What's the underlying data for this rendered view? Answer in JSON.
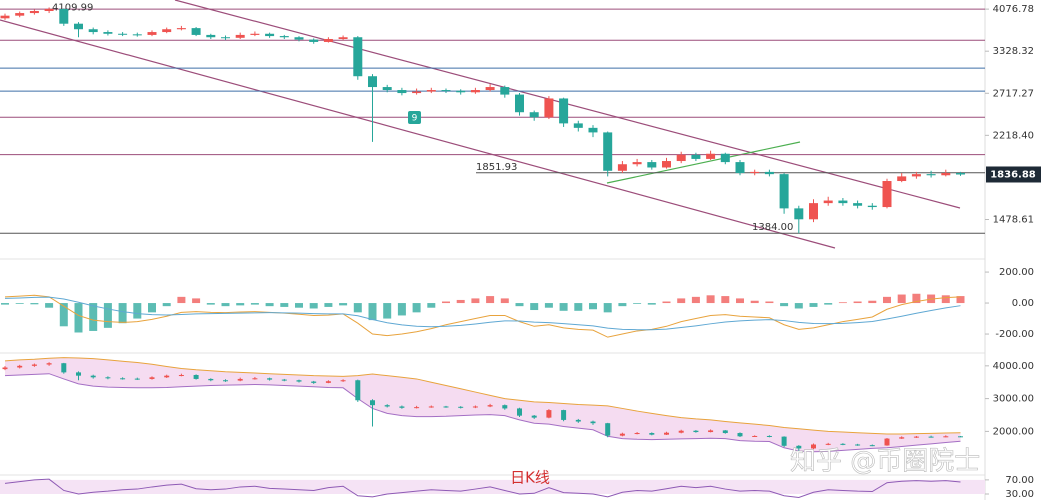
{
  "chart_data": [
    {
      "type": "candlestick",
      "log": true,
      "ylim": [
        1240,
        4260
      ],
      "yticks": [
        4076.78,
        3328.32,
        2717.27,
        {
          "value": 2218.4,
          "label": "2218.40"
        },
        1478.61
      ],
      "up_color": "#ef5350",
      "down_color": "#26a69a",
      "ohlc": [
        [
          3900,
          3990,
          3870,
          3950
        ],
        [
          3950,
          4030,
          3920,
          4000
        ],
        [
          4000,
          4070,
          3970,
          4040
        ],
        [
          4040,
          4110,
          4000,
          4080
        ],
        [
          4080,
          4090,
          3760,
          3800
        ],
        [
          3800,
          3830,
          3560,
          3700
        ],
        [
          3700,
          3730,
          3610,
          3650
        ],
        [
          3650,
          3680,
          3590,
          3620
        ],
        [
          3620,
          3650,
          3580,
          3610
        ],
        [
          3610,
          3640,
          3570,
          3600
        ],
        [
          3600,
          3680,
          3580,
          3650
        ],
        [
          3650,
          3730,
          3630,
          3700
        ],
        [
          3700,
          3760,
          3680,
          3720
        ],
        [
          3720,
          3740,
          3580,
          3600
        ],
        [
          3600,
          3620,
          3530,
          3560
        ],
        [
          3560,
          3590,
          3510,
          3550
        ],
        [
          3550,
          3640,
          3530,
          3600
        ],
        [
          3600,
          3660,
          3580,
          3620
        ],
        [
          3620,
          3640,
          3550,
          3580
        ],
        [
          3580,
          3600,
          3530,
          3560
        ],
        [
          3560,
          3580,
          3490,
          3520
        ],
        [
          3520,
          3540,
          3450,
          3480
        ],
        [
          3480,
          3560,
          3470,
          3530
        ],
        [
          3530,
          3590,
          3510,
          3560
        ],
        [
          3560,
          3580,
          2900,
          2950
        ],
        [
          2950,
          2980,
          2150,
          2800
        ],
        [
          2800,
          2830,
          2730,
          2760
        ],
        [
          2760,
          2790,
          2690,
          2720
        ],
        [
          2720,
          2780,
          2700,
          2740
        ],
        [
          2740,
          2790,
          2720,
          2760
        ],
        [
          2760,
          2780,
          2720,
          2750
        ],
        [
          2750,
          2770,
          2700,
          2730
        ],
        [
          2730,
          2790,
          2710,
          2760
        ],
        [
          2760,
          2840,
          2740,
          2800
        ],
        [
          2800,
          2820,
          2660,
          2700
        ],
        [
          2700,
          2720,
          2440,
          2480
        ],
        [
          2480,
          2500,
          2380,
          2420
        ],
        [
          2420,
          2680,
          2400,
          2650
        ],
        [
          2650,
          2660,
          2310,
          2350
        ],
        [
          2350,
          2380,
          2260,
          2300
        ],
        [
          2300,
          2330,
          2200,
          2250
        ],
        [
          2250,
          2260,
          1820,
          1870
        ],
        [
          1870,
          1960,
          1850,
          1930
        ],
        [
          1930,
          1980,
          1910,
          1950
        ],
        [
          1950,
          1970,
          1880,
          1900
        ],
        [
          1900,
          1990,
          1890,
          1960
        ],
        [
          1960,
          2050,
          1940,
          2020
        ],
        [
          2020,
          2040,
          1960,
          1980
        ],
        [
          1980,
          2060,
          1970,
          2030
        ],
        [
          2030,
          2040,
          1930,
          1950
        ],
        [
          1950,
          1970,
          1830,
          1850
        ],
        [
          1850,
          1880,
          1830,
          1860
        ],
        [
          1860,
          1880,
          1820,
          1840
        ],
        [
          1840,
          1850,
          1520,
          1560
        ],
        [
          1560,
          1580,
          1384,
          1480
        ],
        [
          1480,
          1630,
          1460,
          1600
        ],
        [
          1600,
          1650,
          1580,
          1620
        ],
        [
          1620,
          1640,
          1580,
          1600
        ],
        [
          1600,
          1620,
          1560,
          1580
        ],
        [
          1580,
          1600,
          1550,
          1570
        ],
        [
          1570,
          1800,
          1560,
          1780
        ],
        [
          1780,
          1850,
          1770,
          1820
        ],
        [
          1820,
          1860,
          1800,
          1840
        ],
        [
          1840,
          1870,
          1810,
          1830
        ],
        [
          1830,
          1880,
          1820,
          1850
        ],
        [
          1850,
          1860,
          1825,
          1836.88
        ]
      ],
      "levels": [
        4076,
        3509,
        3068,
        2745,
        2420,
        2022
      ],
      "level_colors": [
        "#9c4d7a",
        "#9c4d7a",
        "#3f6fa8",
        "#3f6fa8",
        "#9c4d7a",
        "#9c4d7a"
      ],
      "price_labels": [
        {
          "value": 4109.99,
          "label": "4109.99"
        },
        {
          "value": 1851.93,
          "label": "1851.93"
        },
        {
          "value": 1384,
          "label": "1384.00"
        }
      ],
      "last": {
        "value": 1836.88,
        "label": "1836.88"
      }
    },
    {
      "type": "macd",
      "ylim": [
        -303,
        265
      ],
      "yticks": [
        {
          "value": 200,
          "label": "200.00"
        },
        {
          "value": 0,
          "label": "0.00"
        },
        {
          "value": -200,
          "label": "-200.00"
        }
      ],
      "up_color": "#ef5350",
      "down_color": "#26a69a",
      "histogram": [
        -10,
        -5,
        -8,
        -30,
        -150,
        -190,
        -180,
        -160,
        -130,
        -100,
        -60,
        -20,
        40,
        30,
        -10,
        -20,
        -15,
        -10,
        -20,
        -25,
        -30,
        -35,
        -25,
        -15,
        -60,
        -110,
        -100,
        -80,
        -60,
        -30,
        10,
        20,
        30,
        45,
        30,
        -20,
        -45,
        -30,
        -50,
        -50,
        -40,
        -60,
        -20,
        -5,
        -10,
        10,
        30,
        40,
        50,
        45,
        30,
        15,
        10,
        -20,
        -35,
        -25,
        -10,
        5,
        10,
        15,
        40,
        55,
        60,
        55,
        50,
        45
      ],
      "series": [
        {
          "color": "#e8a33d",
          "values": [
            40,
            45,
            50,
            40,
            -20,
            -80,
            -110,
            -120,
            -125,
            -120,
            -105,
            -85,
            -60,
            -55,
            -60,
            -62,
            -58,
            -55,
            -60,
            -65,
            -72,
            -80,
            -78,
            -70,
            -130,
            -200,
            -210,
            -200,
            -185,
            -165,
            -140,
            -120,
            -100,
            -80,
            -80,
            -120,
            -150,
            -140,
            -160,
            -170,
            -175,
            -220,
            -200,
            -180,
            -170,
            -150,
            -120,
            -100,
            -80,
            -75,
            -85,
            -90,
            -95,
            -140,
            -170,
            -160,
            -140,
            -120,
            -105,
            -90,
            -40,
            -10,
            10,
            25,
            35,
            40
          ]
        },
        {
          "color": "#5fa8d3",
          "values": [
            30,
            33,
            37,
            38,
            26,
            5,
            -18,
            -38,
            -55,
            -68,
            -75,
            -77,
            -74,
            -70,
            -68,
            -67,
            -65,
            -63,
            -62,
            -63,
            -65,
            -68,
            -70,
            -70,
            -82,
            -106,
            -127,
            -141,
            -150,
            -153,
            -150,
            -144,
            -135,
            -124,
            -115,
            -116,
            -123,
            -126,
            -133,
            -140,
            -147,
            -162,
            -170,
            -172,
            -172,
            -168,
            -158,
            -147,
            -134,
            -122,
            -115,
            -110,
            -107,
            -113,
            -125,
            -132,
            -133,
            -131,
            -126,
            -119,
            -103,
            -85,
            -66,
            -48,
            -31,
            -17
          ]
        }
      ]
    },
    {
      "type": "boll",
      "ylim": [
        700,
        4300
      ],
      "yticks": [
        {
          "value": 4000,
          "label": "4000.00"
        },
        {
          "value": 3000,
          "label": "3000.00"
        },
        {
          "value": 2000,
          "label": "2000.00"
        }
      ],
      "band_color": "#f3d3ee",
      "series": [
        {
          "color": "#e8a33d",
          "values": [
            4150,
            4180,
            4200,
            4230,
            4250,
            4240,
            4220,
            4180,
            4140,
            4100,
            4050,
            3980,
            3920,
            3880,
            3850,
            3820,
            3800,
            3780,
            3760,
            3740,
            3720,
            3700,
            3690,
            3680,
            3700,
            3750,
            3700,
            3650,
            3600,
            3500,
            3400,
            3300,
            3200,
            3100,
            3000,
            2950,
            2900,
            2880,
            2850,
            2820,
            2800,
            2780,
            2700,
            2620,
            2550,
            2480,
            2420,
            2380,
            2350,
            2300,
            2260,
            2220,
            2180,
            2120,
            2080,
            2040,
            2000,
            1980,
            1960,
            1940,
            1920,
            1920,
            1930,
            1940,
            1950,
            1960
          ]
        },
        {
          "color": "#a46fc4",
          "values": [
            3700,
            3720,
            3740,
            3760,
            3600,
            3450,
            3380,
            3350,
            3340,
            3330,
            3330,
            3340,
            3360,
            3380,
            3400,
            3410,
            3420,
            3430,
            3420,
            3400,
            3380,
            3360,
            3340,
            3330,
            3000,
            2700,
            2550,
            2480,
            2450,
            2450,
            2460,
            2480,
            2500,
            2510,
            2480,
            2350,
            2250,
            2220,
            2150,
            2100,
            2050,
            1850,
            1780,
            1760,
            1750,
            1760,
            1770,
            1780,
            1790,
            1780,
            1720,
            1700,
            1690,
            1500,
            1400,
            1380,
            1390,
            1420,
            1450,
            1480,
            1500,
            1540,
            1580,
            1620,
            1660,
            1700
          ]
        }
      ]
    },
    {
      "type": "rsi",
      "ylim": [
        13,
        81
      ],
      "yticks": [
        {
          "value": 70,
          "label": "70.00"
        },
        {
          "value": 30,
          "label": "30.00"
        }
      ],
      "color": "#8e5ab5",
      "values": [
        60,
        65,
        70,
        72,
        40,
        30,
        35,
        38,
        42,
        44,
        50,
        55,
        58,
        45,
        42,
        44,
        50,
        52,
        46,
        44,
        42,
        40,
        48,
        52,
        25,
        22,
        30,
        34,
        38,
        42,
        40,
        38,
        44,
        50,
        40,
        30,
        32,
        48,
        34,
        32,
        30,
        22,
        35,
        40,
        38,
        45,
        52,
        48,
        52,
        44,
        38,
        40,
        38,
        25,
        20,
        35,
        42,
        40,
        38,
        37,
        62,
        66,
        68,
        66,
        68,
        64
      ]
    }
  ],
  "period_label": "日K线",
  "watermark": "知乎 @币圈院士",
  "badge": "9"
}
